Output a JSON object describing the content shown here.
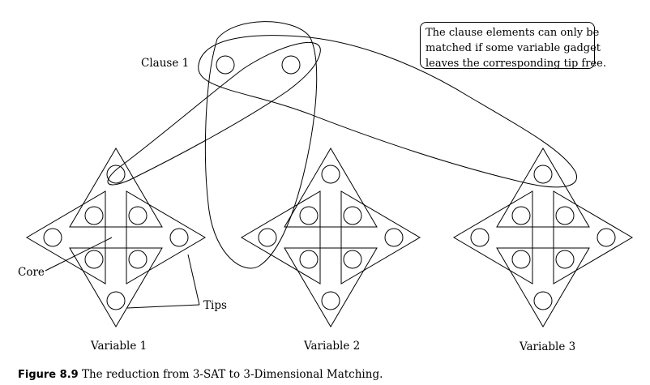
{
  "labels": {
    "clause": "Clause 1",
    "core": "Core",
    "tips": "Tips",
    "variables": [
      "Variable 1",
      "Variable 2",
      "Variable 3"
    ]
  },
  "note": {
    "lines": [
      "The clause elements can only be",
      "matched if some variable gadget",
      "leaves the corresponding tip free."
    ]
  },
  "caption": {
    "number": "Figure 8.9",
    "text": "The reduction from 3-SAT to 3-Dimensional Matching."
  }
}
